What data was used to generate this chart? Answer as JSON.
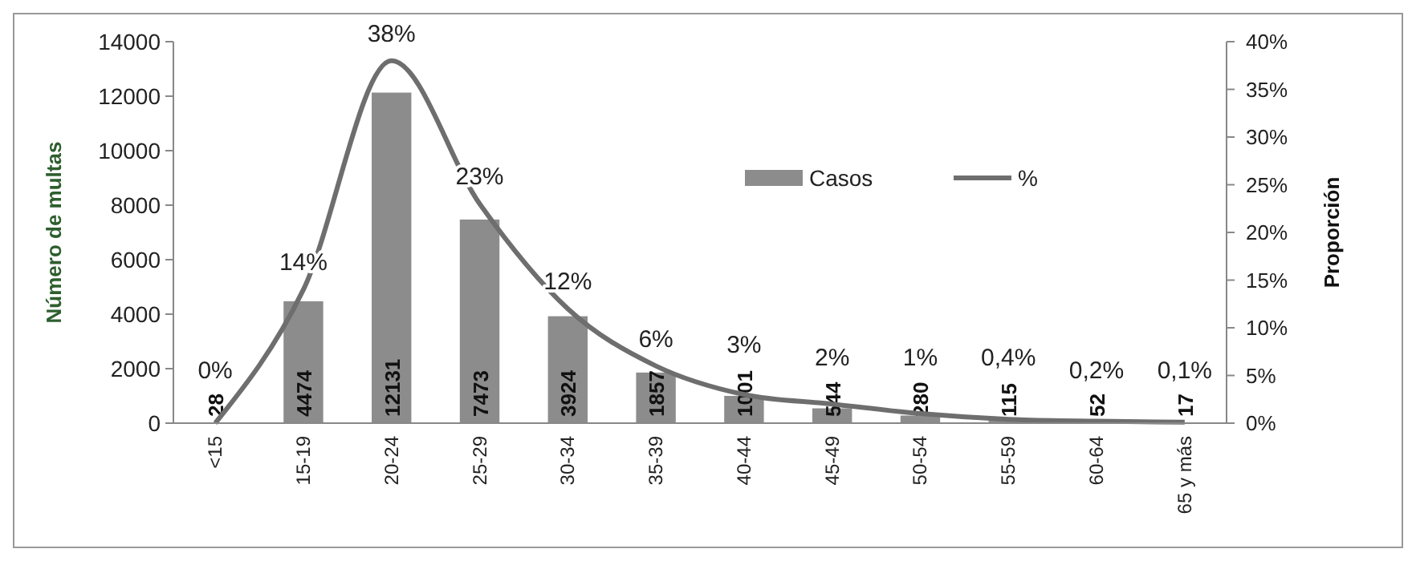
{
  "chart_data": {
    "type": "bar",
    "ylabel": "Número de multas",
    "y2label": "Proporción",
    "categories": [
      "<15",
      "15-19",
      "20-24",
      "25-29",
      "30-34",
      "35-39",
      "40-44",
      "45-49",
      "50-54",
      "55-59",
      "60-64",
      "65 y más"
    ],
    "series": [
      {
        "name": "Casos",
        "color": "#8c8c8c",
        "values": [
          28,
          4474,
          12131,
          7473,
          3924,
          1857,
          1001,
          544,
          280,
          115,
          52,
          17
        ],
        "value_labels": [
          "28",
          "4474",
          "12131",
          "7473",
          "3924",
          "1857",
          "1001",
          "544",
          "280",
          "115",
          "52",
          "17"
        ]
      },
      {
        "name": "%",
        "type": "line",
        "axis": "y2",
        "color": "#6e6e6e",
        "values": [
          0,
          14,
          38,
          23,
          12,
          6,
          3,
          2,
          1,
          0.4,
          0.2,
          0.1
        ],
        "value_labels": [
          "0%",
          "14%",
          "38%",
          "23%",
          "12%",
          "6%",
          "3%",
          "2%",
          "1%",
          "0,4%",
          "0,2%",
          "0,1%"
        ]
      }
    ],
    "ylim": [
      0,
      14000
    ],
    "yticks": [
      0,
      2000,
      4000,
      6000,
      8000,
      10000,
      12000,
      14000
    ],
    "y2lim": [
      0,
      40
    ],
    "y2ticks": [
      {
        "value": 0,
        "label": "0%"
      },
      {
        "value": 5,
        "label": "5%"
      },
      {
        "value": 10,
        "label": "10%"
      },
      {
        "value": 15,
        "label": "15%"
      },
      {
        "value": 20,
        "label": "20%"
      },
      {
        "value": 25,
        "label": "25%"
      },
      {
        "value": 30,
        "label": "30%"
      },
      {
        "value": 35,
        "label": "35%"
      },
      {
        "value": 40,
        "label": "40%"
      }
    ],
    "grid": false,
    "legend": "top right",
    "marker": "none",
    "line_style": "solid"
  }
}
